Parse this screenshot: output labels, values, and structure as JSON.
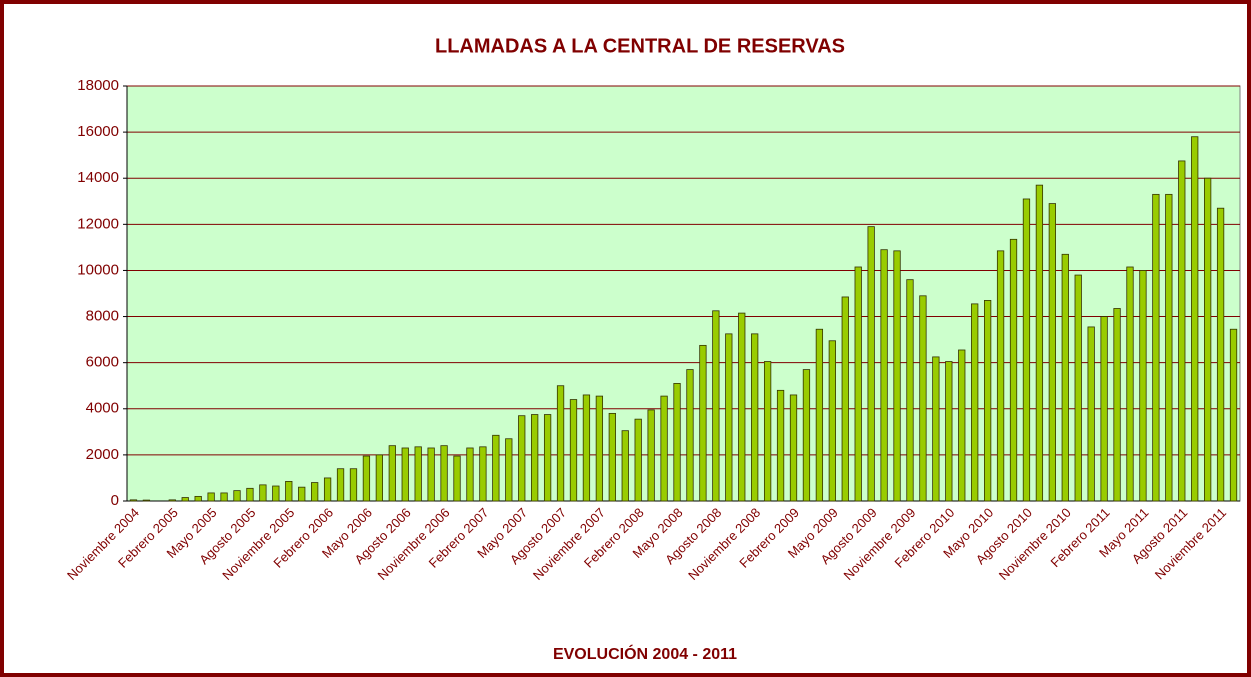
{
  "chart_data": {
    "type": "bar",
    "title": "LLAMADAS A LA CENTRAL DE RESERVAS",
    "x_label": "EVOLUCIÓN 2004 - 2011",
    "categories": [
      "Noviembre 2004",
      null,
      null,
      "Febrero 2005",
      null,
      null,
      "Mayo 2005",
      null,
      null,
      "Agosto 2005",
      null,
      null,
      "Noviembre 2005",
      null,
      null,
      "Febrero 2006",
      null,
      null,
      "Mayo 2006",
      null,
      null,
      "Agosto 2006",
      null,
      null,
      "Noviembre 2006",
      null,
      null,
      "Febrero 2007",
      null,
      null,
      "Mayo 2007",
      null,
      null,
      "Agosto 2007",
      null,
      null,
      "Noviembre 2007",
      null,
      null,
      "Febrero 2008",
      null,
      null,
      "Mayo 2008",
      null,
      null,
      "Agosto 2008",
      null,
      null,
      "Noviembre 2008",
      null,
      null,
      "Febrero 2009",
      null,
      null,
      "Mayo 2009",
      null,
      null,
      "Agosto 2009",
      null,
      null,
      "Noviembre 2009",
      null,
      null,
      "Febrero 2010",
      null,
      null,
      "Mayo 2010",
      null,
      null,
      "Agosto 2010",
      null,
      null,
      "Noviembre 2010",
      null,
      null,
      "Febrero 2011",
      null,
      null,
      "Mayo 2011",
      null,
      null,
      "Agosto 2011",
      null,
      null,
      "Noviembre 2011",
      null
    ],
    "values": [
      50,
      40,
      0,
      50,
      150,
      200,
      350,
      350,
      450,
      550,
      700,
      650,
      850,
      600,
      800,
      1000,
      1400,
      1400,
      1950,
      2000,
      2400,
      2300,
      2350,
      2300,
      2400,
      1950,
      2300,
      2350,
      2850,
      2700,
      3700,
      3750,
      3750,
      5000,
      4400,
      4600,
      4550,
      3800,
      3050,
      3550,
      3950,
      4550,
      5100,
      5700,
      6750,
      8250,
      7250,
      8150,
      7250,
      6050,
      4800,
      4600,
      5700,
      7450,
      6950,
      8850,
      10150,
      11900,
      10900,
      10850,
      9600,
      8900,
      6250,
      6050,
      6550,
      8550,
      8700,
      10850,
      11350,
      13100,
      13700,
      12900,
      10700,
      9800,
      7550,
      8000,
      8350,
      10150,
      10000,
      13300,
      13300,
      14750,
      15800,
      14000,
      12700,
      7450
    ],
    "color": "#99cc00",
    "ylim": [
      0,
      18000
    ],
    "yticks": [
      0,
      2000,
      4000,
      6000,
      8000,
      10000,
      12000,
      14000,
      16000,
      18000
    ],
    "grid": true
  }
}
